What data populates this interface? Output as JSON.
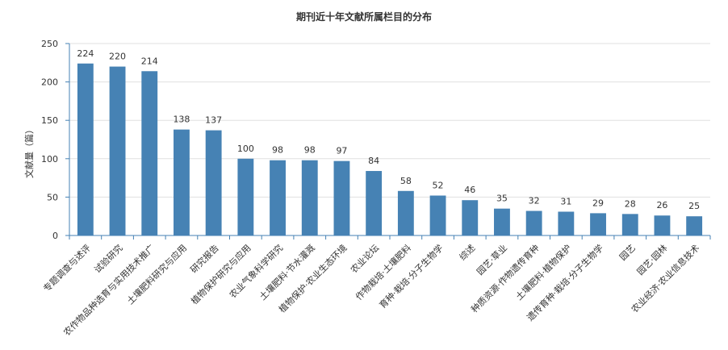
{
  "chart_data": {
    "type": "bar",
    "title": "期刊近十年文献所属栏目的分布",
    "ylabel": "文献量（篇）",
    "xlabel": "",
    "ylim": [
      0,
      250
    ],
    "yticks": [
      0,
      50,
      100,
      150,
      200,
      250
    ],
    "grid": true,
    "bar_color": "#4682b4",
    "categories": [
      "专题调查与述评",
      "试验研究",
      "农作物品种选育与实用技术推广",
      "土壤肥料研究与应用",
      "研究报告",
      "植物保护研究与应用",
      "农业气象科学研究",
      "土壤肥料·节水灌溉",
      "植物保护·农业生态环境",
      "农业论坛",
      "作物栽培·土壤肥料",
      "育种·栽培·分子生物学",
      "综述",
      "园艺·草业",
      "种质资源·作物遗传育种",
      "土壤肥料·植物保护",
      "遗传育种·栽培·分子生物学",
      "园艺",
      "园艺·园林",
      "农业经济·农业信息技术"
    ],
    "values": [
      224,
      220,
      214,
      138,
      137,
      100,
      98,
      98,
      97,
      84,
      58,
      52,
      46,
      35,
      32,
      31,
      29,
      28,
      26,
      25
    ]
  }
}
